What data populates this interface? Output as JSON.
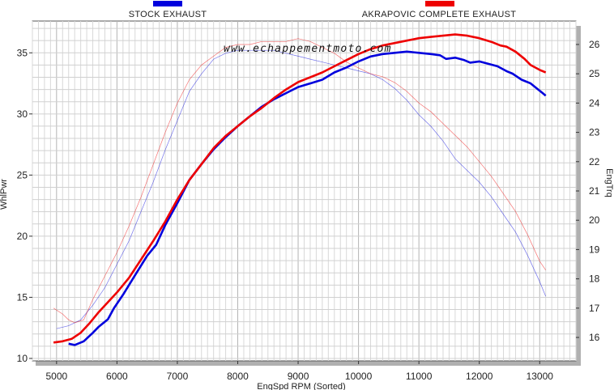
{
  "chart_data": {
    "type": "line",
    "xlabel": "EngSpd  RPM   (Sorted)",
    "ylabel_left": "WhlPwr",
    "ylabel_right": "EngTrq",
    "xlim": [
      4600,
      13600
    ],
    "ylim_left": [
      9.8,
      37.6
    ],
    "ylim_right": [
      15.2,
      26.8
    ],
    "xticks": [
      5000,
      6000,
      7000,
      8000,
      9000,
      10000,
      11000,
      12000,
      13000
    ],
    "yticks_left": [
      10,
      15,
      20,
      25,
      30,
      35
    ],
    "yticks_right": [
      16,
      17,
      18,
      19,
      20,
      21,
      22,
      23,
      24,
      25,
      26
    ],
    "grid": true,
    "watermark": "www.echappementmoto.com",
    "series": [
      {
        "name": "STOCK EXHAUST",
        "color": "#0000dd",
        "power": {
          "x": [
            5200,
            5300,
            5450,
            5600,
            5700,
            5850,
            5950,
            6100,
            6300,
            6500,
            6650,
            6800,
            7000,
            7200,
            7400,
            7600,
            7800,
            8000,
            8200,
            8400,
            8600,
            8800,
            9000,
            9200,
            9400,
            9600,
            9800,
            10000,
            10200,
            10400,
            10600,
            10800,
            11000,
            11200,
            11350,
            11450,
            11600,
            11750,
            11850,
            12000,
            12150,
            12300,
            12450,
            12550,
            12700,
            12850,
            12950,
            13050,
            13100
          ],
          "y": [
            11.2,
            11.1,
            11.4,
            12.1,
            12.6,
            13.2,
            14.1,
            15.2,
            16.8,
            18.4,
            19.3,
            20.9,
            22.7,
            24.6,
            25.9,
            27.1,
            28.1,
            29.0,
            29.8,
            30.6,
            31.2,
            31.7,
            32.2,
            32.5,
            32.8,
            33.4,
            33.8,
            34.3,
            34.7,
            34.9,
            35.0,
            35.1,
            35.0,
            34.9,
            34.8,
            34.5,
            34.6,
            34.4,
            34.2,
            34.3,
            34.1,
            33.9,
            33.5,
            33.3,
            32.8,
            32.5,
            32.1,
            31.7,
            31.5
          ]
        },
        "torque": {
          "x": [
            5000,
            5200,
            5400,
            5600,
            5800,
            6000,
            6200,
            6400,
            6600,
            6800,
            7000,
            7200,
            7400,
            7600,
            7800,
            8000,
            8200,
            8400,
            8600,
            8800,
            9000,
            9200,
            9400,
            9600,
            9800,
            10000,
            10200,
            10400,
            10600,
            10800,
            11000,
            11200,
            11400,
            11600,
            11800,
            12000,
            12200,
            12400,
            12600,
            12800,
            13000,
            13100
          ],
          "y": [
            16.3,
            16.4,
            16.6,
            17.1,
            17.7,
            18.5,
            19.3,
            20.3,
            21.3,
            22.4,
            23.4,
            24.4,
            25.0,
            25.5,
            25.7,
            25.8,
            25.8,
            25.8,
            25.8,
            25.7,
            25.6,
            25.5,
            25.4,
            25.3,
            25.2,
            25.1,
            25.0,
            24.8,
            24.5,
            24.1,
            23.6,
            23.2,
            22.7,
            22.1,
            21.7,
            21.3,
            20.8,
            20.2,
            19.6,
            18.8,
            17.9,
            17.4
          ]
        }
      },
      {
        "name": "AKRAPOVIC COMPLETE EXHAUST",
        "color": "#ee0000",
        "power": {
          "x": [
            4950,
            5100,
            5250,
            5400,
            5550,
            5700,
            5850,
            6000,
            6200,
            6400,
            6600,
            6800,
            7000,
            7200,
            7400,
            7600,
            7800,
            8000,
            8200,
            8400,
            8600,
            8800,
            9000,
            9200,
            9400,
            9600,
            9800,
            10000,
            10200,
            10400,
            10600,
            10800,
            11000,
            11200,
            11400,
            11600,
            11800,
            12000,
            12200,
            12350,
            12450,
            12600,
            12750,
            12850,
            13000,
            13100
          ],
          "y": [
            11.3,
            11.4,
            11.6,
            12.1,
            12.9,
            13.8,
            14.6,
            15.4,
            16.6,
            18.1,
            19.6,
            21.2,
            23.0,
            24.6,
            25.9,
            27.2,
            28.2,
            29.0,
            29.8,
            30.5,
            31.3,
            32.0,
            32.6,
            33.0,
            33.4,
            33.9,
            34.4,
            34.9,
            35.3,
            35.6,
            35.8,
            36.0,
            36.2,
            36.3,
            36.4,
            36.5,
            36.4,
            36.2,
            35.9,
            35.6,
            35.5,
            35.1,
            34.5,
            34.0,
            33.6,
            33.4
          ]
        },
        "torque": {
          "x": [
            4950,
            5100,
            5200,
            5300,
            5450,
            5600,
            5800,
            6000,
            6200,
            6400,
            6600,
            6800,
            7000,
            7200,
            7400,
            7600,
            7800,
            8000,
            8200,
            8400,
            8600,
            8800,
            9000,
            9200,
            9400,
            9600,
            9800,
            10000,
            10200,
            10400,
            10600,
            10800,
            11000,
            11200,
            11400,
            11600,
            11800,
            12000,
            12200,
            12400,
            12600,
            12800,
            13000,
            13100
          ],
          "y": [
            17.0,
            16.8,
            16.6,
            16.5,
            16.6,
            17.3,
            18.1,
            18.9,
            19.8,
            20.8,
            21.9,
            23.0,
            24.0,
            24.8,
            25.3,
            25.6,
            25.9,
            26.0,
            26.0,
            26.1,
            26.1,
            26.1,
            26.2,
            26.1,
            25.9,
            25.7,
            25.4,
            25.2,
            25.0,
            24.9,
            24.7,
            24.4,
            24.0,
            23.7,
            23.3,
            22.9,
            22.5,
            22.0,
            21.5,
            20.9,
            20.3,
            19.5,
            18.6,
            18.3
          ]
        }
      }
    ]
  }
}
